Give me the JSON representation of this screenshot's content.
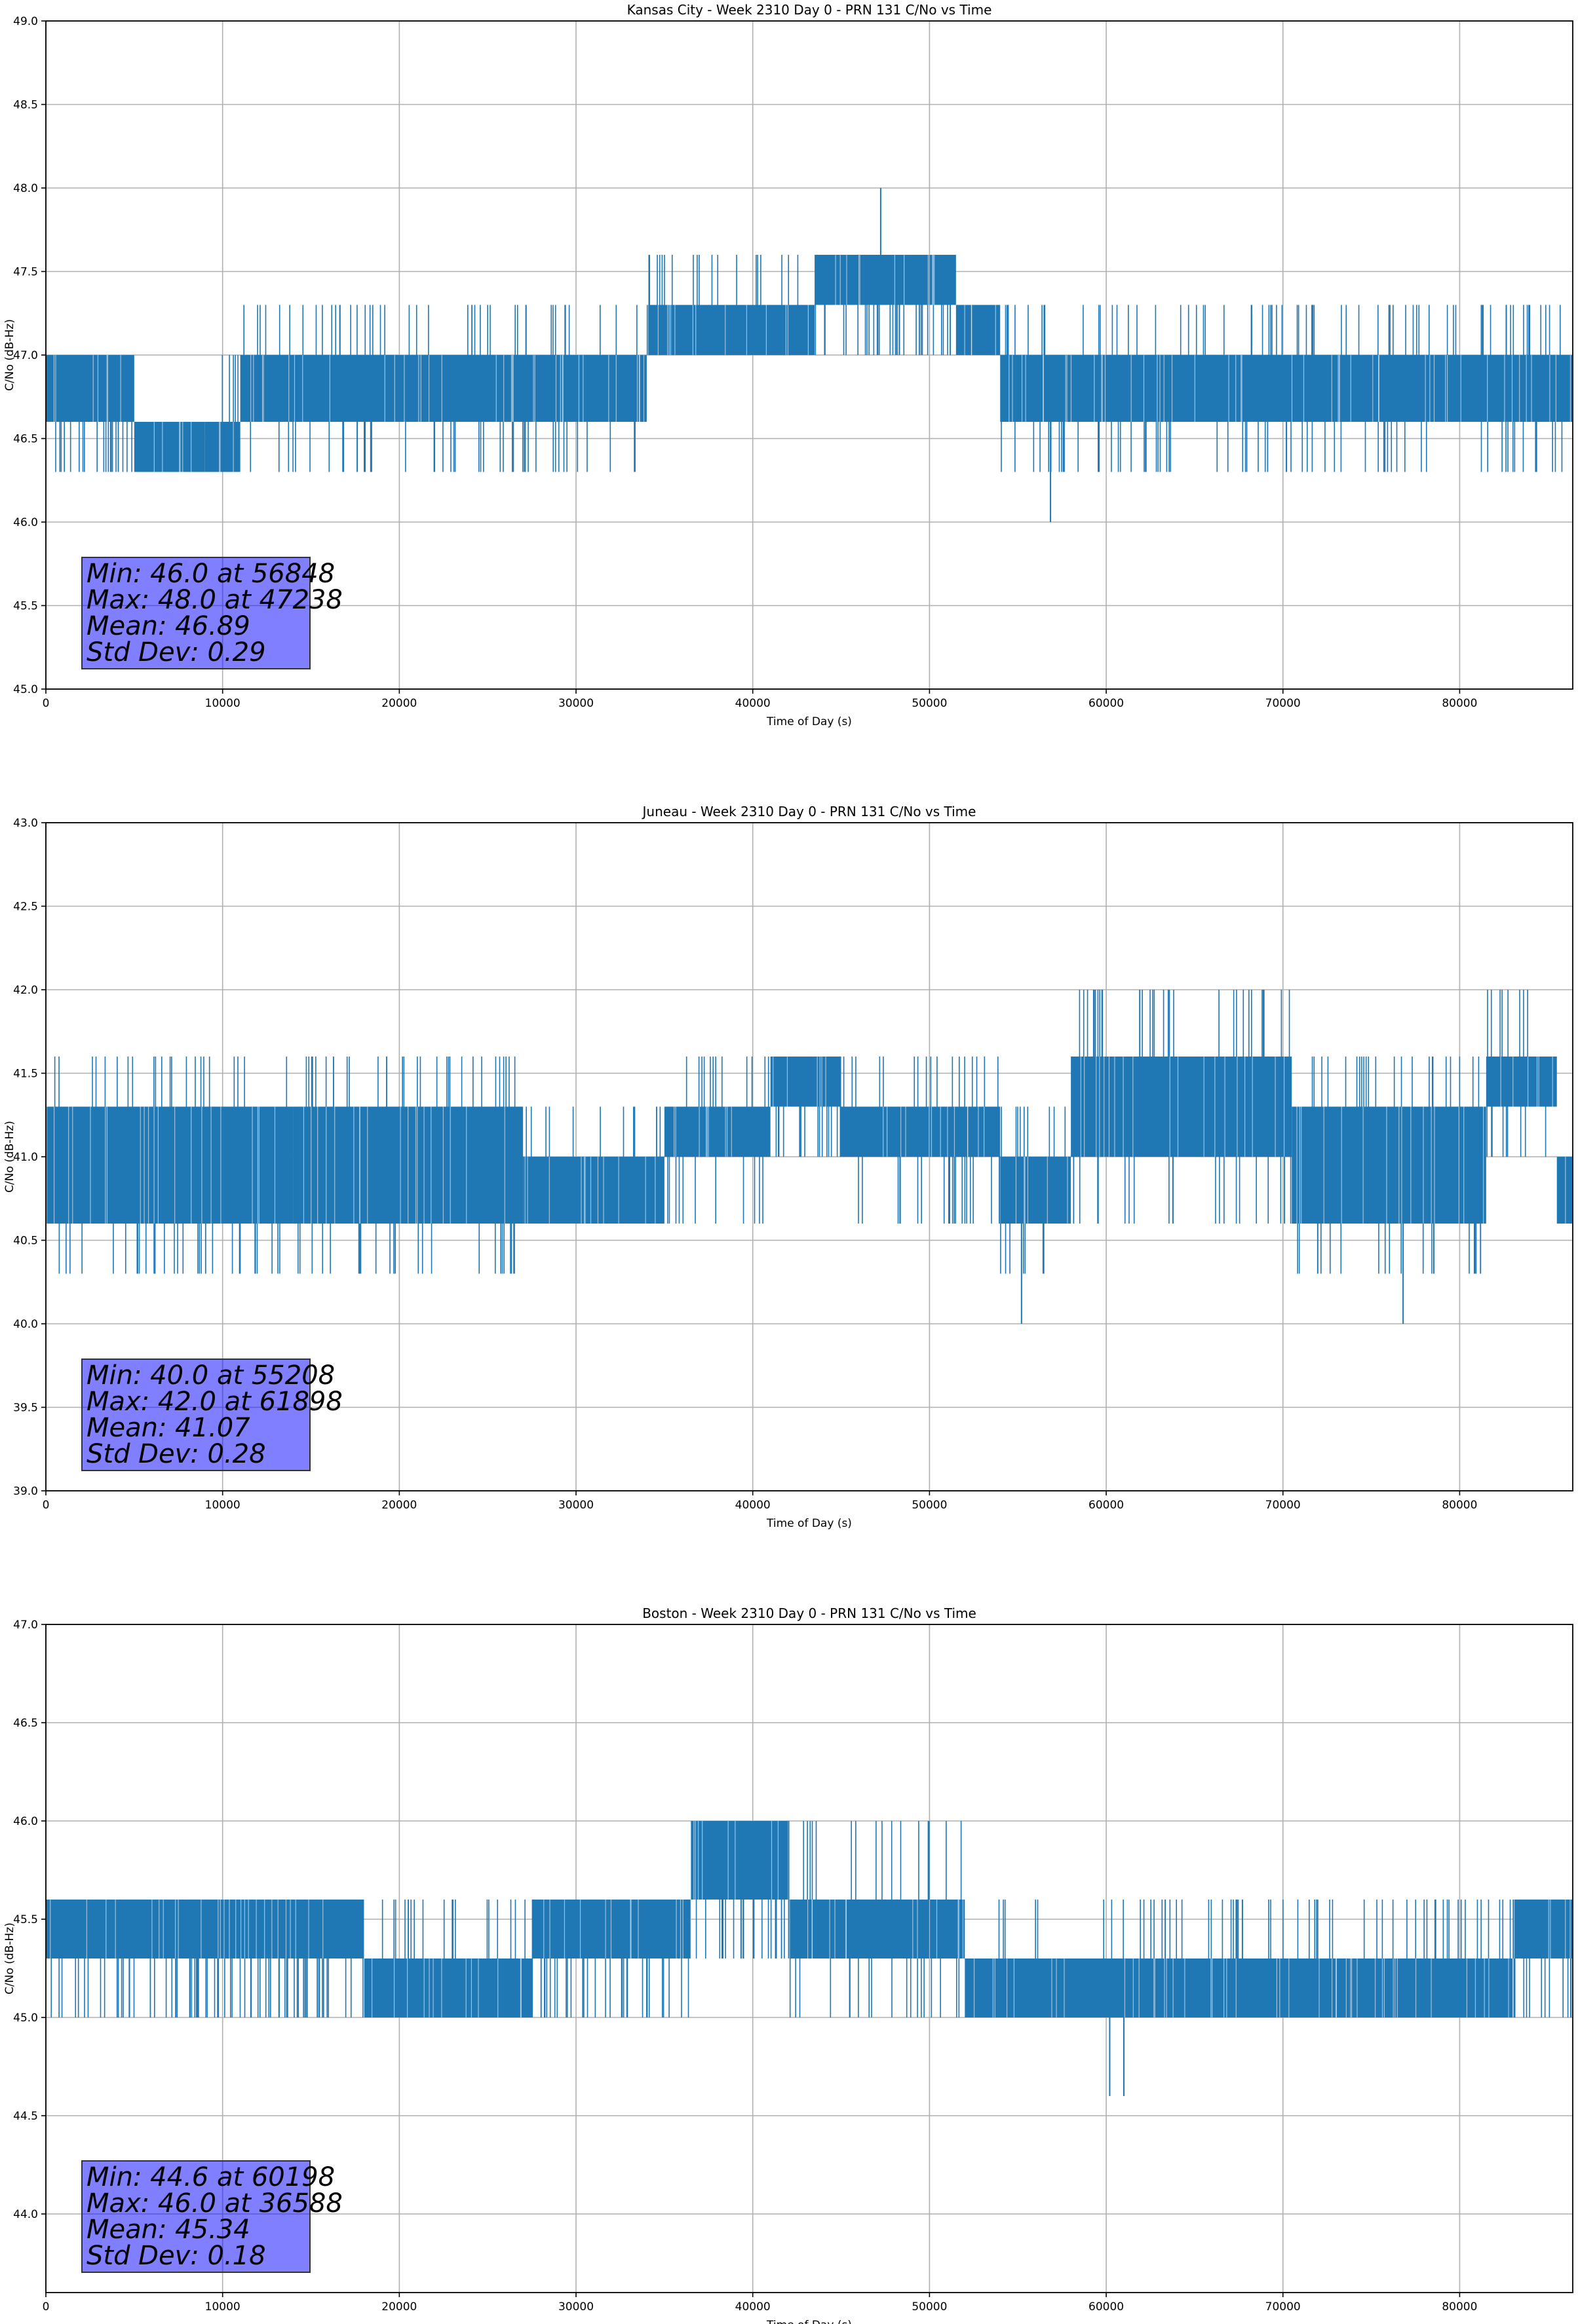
{
  "chart_data": [
    {
      "type": "line",
      "title": "Kansas City - Week 2310 Day 0 - PRN 131 C/No vs Time",
      "xlabel": "Time of Day (s)",
      "ylabel": "C/No (dB-Hz)",
      "xlim": [
        0,
        86400
      ],
      "ylim": [
        45.0,
        49.0
      ],
      "xticks": [
        0,
        10000,
        20000,
        30000,
        40000,
        50000,
        60000,
        70000,
        80000
      ],
      "yticks": [
        "45.0",
        "45.5",
        "46.0",
        "46.5",
        "47.0",
        "47.5",
        "48.0",
        "48.5",
        "49.0"
      ],
      "grid": true,
      "series_color": "#1f77b4",
      "segments": [
        {
          "x": [
            0,
            5000
          ],
          "low": 46.6,
          "high": 47.0,
          "spike_low": 46.3,
          "spike_high": 47.0
        },
        {
          "x": [
            5000,
            9000
          ],
          "low": 46.3,
          "high": 46.6,
          "spike_low": 46.3,
          "spike_high": 46.6
        },
        {
          "x": [
            9000,
            11000
          ],
          "low": 46.3,
          "high": 46.6,
          "spike_low": 46.3,
          "spike_high": 47.0
        },
        {
          "x": [
            11000,
            34000
          ],
          "low": 46.6,
          "high": 47.0,
          "spike_low": 46.3,
          "spike_high": 47.3
        },
        {
          "x": [
            34000,
            43500
          ],
          "low": 47.0,
          "high": 47.3,
          "spike_low": 47.0,
          "spike_high": 47.6
        },
        {
          "x": [
            43500,
            51500
          ],
          "low": 47.3,
          "high": 47.6,
          "spike_low": 47.0,
          "spike_high": 47.6
        },
        {
          "x": [
            51500,
            54000
          ],
          "low": 47.0,
          "high": 47.3,
          "spike_low": 47.0,
          "spike_high": 47.3
        },
        {
          "x": [
            54000,
            86400
          ],
          "low": 46.6,
          "high": 47.0,
          "spike_low": 46.3,
          "spike_high": 47.3
        }
      ],
      "extremes": [
        {
          "x": 56848,
          "y": 46.0,
          "base": 46.6
        },
        {
          "x": 47238,
          "y": 48.0,
          "base": 47.6
        }
      ],
      "stats": {
        "min": "Min: 46.0 at 56848",
        "max": "Max: 48.0 at 47238",
        "mean": "Mean: 46.89",
        "std": "Std Dev: 0.29"
      }
    },
    {
      "type": "line",
      "title": "Juneau - Week 2310 Day 0 - PRN 131 C/No vs Time",
      "xlabel": "Time of Day (s)",
      "ylabel": "C/No (dB-Hz)",
      "xlim": [
        0,
        86400
      ],
      "ylim": [
        39.0,
        43.0
      ],
      "xticks": [
        0,
        10000,
        20000,
        30000,
        40000,
        50000,
        60000,
        70000,
        80000
      ],
      "yticks": [
        "39.0",
        "39.5",
        "40.0",
        "40.5",
        "41.0",
        "41.5",
        "42.0",
        "42.5",
        "43.0"
      ],
      "grid": true,
      "series_color": "#1f77b4",
      "segments": [
        {
          "x": [
            0,
            14000
          ],
          "low": 40.6,
          "high": 41.3,
          "spike_low": 40.3,
          "spike_high": 41.6
        },
        {
          "x": [
            14000,
            27000
          ],
          "low": 40.6,
          "high": 41.3,
          "spike_low": 40.3,
          "spike_high": 41.6
        },
        {
          "x": [
            27000,
            35000
          ],
          "low": 40.6,
          "high": 41.0,
          "spike_low": 40.6,
          "spike_high": 41.3
        },
        {
          "x": [
            35000,
            41000
          ],
          "low": 41.0,
          "high": 41.3,
          "spike_low": 40.6,
          "spike_high": 41.6
        },
        {
          "x": [
            41000,
            45000
          ],
          "low": 41.3,
          "high": 41.6,
          "spike_low": 41.0,
          "spike_high": 41.6
        },
        {
          "x": [
            45000,
            54000
          ],
          "low": 41.0,
          "high": 41.3,
          "spike_low": 40.6,
          "spike_high": 41.6
        },
        {
          "x": [
            54000,
            58000
          ],
          "low": 40.6,
          "high": 41.0,
          "spike_low": 40.3,
          "spike_high": 41.3
        },
        {
          "x": [
            58000,
            70500
          ],
          "low": 41.0,
          "high": 41.6,
          "spike_low": 40.6,
          "spike_high": 42.0
        },
        {
          "x": [
            70500,
            81500
          ],
          "low": 40.6,
          "high": 41.3,
          "spike_low": 40.3,
          "spike_high": 41.6
        },
        {
          "x": [
            81500,
            85500
          ],
          "low": 41.3,
          "high": 41.6,
          "spike_low": 41.0,
          "spike_high": 42.0
        },
        {
          "x": [
            85500,
            86400
          ],
          "low": 40.6,
          "high": 41.0,
          "spike_low": 40.6,
          "spike_high": 41.0
        }
      ],
      "extremes": [
        {
          "x": 55208,
          "y": 40.0,
          "base": 40.6
        },
        {
          "x": 76800,
          "y": 40.0,
          "base": 40.6
        },
        {
          "x": 61898,
          "y": 42.0,
          "base": 41.6
        }
      ],
      "stats": {
        "min": "Min: 40.0 at 55208",
        "max": "Max: 42.0 at 61898",
        "mean": "Mean: 41.07",
        "std": "Std Dev: 0.28"
      }
    },
    {
      "type": "line",
      "title": "Boston - Week 2310 Day 0 - PRN 131 C/No vs Time",
      "xlabel": "Time of Day (s)",
      "ylabel": "C/No (dB-Hz)",
      "xlim": [
        0,
        86400
      ],
      "ylim": [
        43.6,
        47.0
      ],
      "xticks": [
        0,
        10000,
        20000,
        30000,
        40000,
        50000,
        60000,
        70000,
        80000
      ],
      "yticks": [
        "44.0",
        "44.5",
        "45.0",
        "45.5",
        "46.0",
        "46.5",
        "47.0"
      ],
      "grid": true,
      "series_color": "#1f77b4",
      "segments": [
        {
          "x": [
            0,
            18000
          ],
          "low": 45.3,
          "high": 45.6,
          "spike_low": 45.0,
          "spike_high": 45.6
        },
        {
          "x": [
            18000,
            27500
          ],
          "low": 45.0,
          "high": 45.3,
          "spike_low": 45.0,
          "spike_high": 45.6
        },
        {
          "x": [
            27500,
            36500
          ],
          "low": 45.3,
          "high": 45.6,
          "spike_low": 45.0,
          "spike_high": 45.6
        },
        {
          "x": [
            36500,
            42000
          ],
          "low": 45.6,
          "high": 46.0,
          "spike_low": 45.3,
          "spike_high": 46.0
        },
        {
          "x": [
            42000,
            52000
          ],
          "low": 45.3,
          "high": 45.6,
          "spike_low": 45.0,
          "spike_high": 46.0
        },
        {
          "x": [
            52000,
            83000
          ],
          "low": 45.0,
          "high": 45.3,
          "spike_low": 45.0,
          "spike_high": 45.6
        },
        {
          "x": [
            83000,
            86400
          ],
          "low": 45.3,
          "high": 45.6,
          "spike_low": 45.0,
          "spike_high": 45.6
        }
      ],
      "extremes": [
        {
          "x": 60198,
          "y": 44.6,
          "base": 45.0
        },
        {
          "x": 61000,
          "y": 44.6,
          "base": 45.0
        },
        {
          "x": 36588,
          "y": 46.0,
          "base": 45.6
        }
      ],
      "stats": {
        "min": "Min: 44.6 at 60198",
        "max": "Max: 46.0 at 36588",
        "mean": "Mean: 45.34",
        "std": "Std Dev: 0.18"
      }
    }
  ]
}
